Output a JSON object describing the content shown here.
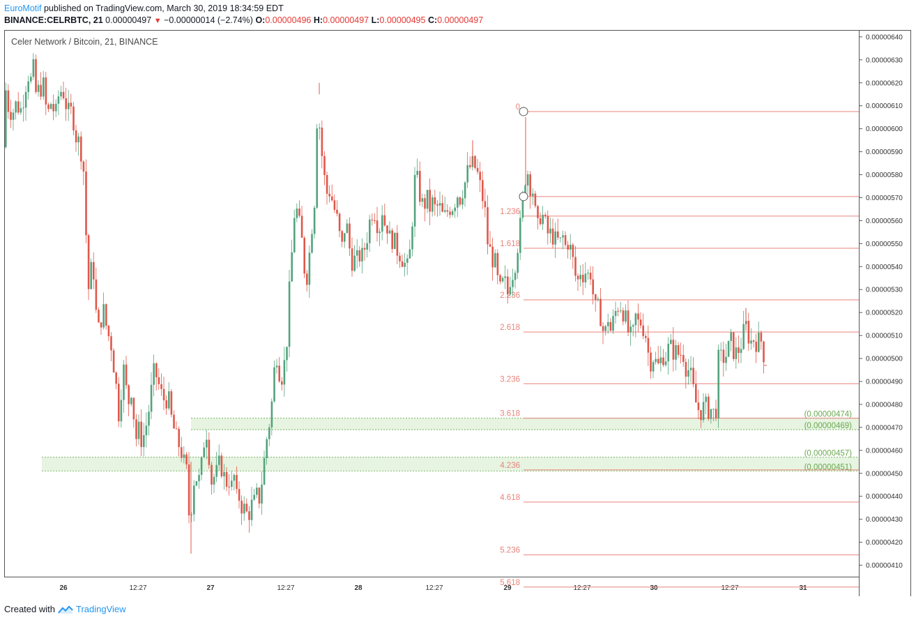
{
  "header": {
    "author": "EuroMotif",
    "published_text": "published on TradingView.com, March 30, 2019 18:34:59 EDT",
    "symbol": "BINANCE:CELRBTC, 21",
    "last_price": "0.00000497",
    "change_arrow": "▼",
    "change": "−0.00000014 (−2.74%)",
    "open_label": "O:",
    "open": "0.00000496",
    "high_label": "H:",
    "high": "0.00000497",
    "low_label": "L:",
    "low": "0.00000495",
    "close_label": "C:",
    "close": "0.00000497"
  },
  "footer": {
    "created_with": "Created with",
    "brand": "TradingView"
  },
  "colors": {
    "up": "#53a37e",
    "down": "#e0574a",
    "fib_line": "#e8837b",
    "fib_text": "#e8837b",
    "zone_fill": "#e6f4e1",
    "zone_text": "#6aa84f",
    "axis": "#555555",
    "price_line": "#e0574a"
  },
  "chart_data": {
    "type": "candlestick",
    "title": "Celer Network / Bitcoin, 21, BINANCE",
    "ylim": [
      4.05e-06,
      6.43e-06
    ],
    "y_ticks": [
      "0.00000640",
      "0.00000630",
      "0.00000620",
      "0.00000610",
      "0.00000600",
      "0.00000590",
      "0.00000580",
      "0.00000570",
      "0.00000560",
      "0.00000550",
      "0.00000540",
      "0.00000530",
      "0.00000520",
      "0.00000510",
      "0.00000500",
      "0.00000490",
      "0.00000480",
      "0.00000470",
      "0.00000460",
      "0.00000450",
      "0.00000440",
      "0.00000430",
      "0.00000420",
      "0.00000410"
    ],
    "x_ticks": [
      "26",
      "12:27",
      "27",
      "12:27",
      "28",
      "12:27",
      "29",
      "12:27",
      "30",
      "12:27",
      "31"
    ],
    "fib_levels": [
      {
        "label": "0",
        "price": 6.075e-06
      },
      {
        "label": "",
        "price": 5.705e-06
      },
      {
        "label": "1.236",
        "price": 5.62e-06
      },
      {
        "label": "1.618",
        "price": 5.48e-06
      },
      {
        "label": "2.236",
        "price": 5.255e-06
      },
      {
        "label": "2.618",
        "price": 5.115e-06
      },
      {
        "label": "3.236",
        "price": 4.89e-06
      },
      {
        "label": "3.618",
        "price": 4.74e-06
      },
      {
        "label": "4.236",
        "price": 4.515e-06
      },
      {
        "label": "4.618",
        "price": 4.375e-06
      },
      {
        "label": "5.236",
        "price": 4.145e-06
      },
      {
        "label": "5.618",
        "price": 4.005e-06
      }
    ],
    "zones": [
      {
        "top": 4.74e-06,
        "bottom": 4.69e-06,
        "top_label": "(0.00000474)",
        "bottom_label": "(0.00000469)"
      },
      {
        "top": 4.57e-06,
        "bottom": 4.51e-06,
        "top_label": "(0.00000457)",
        "bottom_label": "(0.00000451)"
      }
    ],
    "path": [
      [
        0,
        5.92e-06
      ],
      [
        4,
        6.18e-06
      ],
      [
        8,
        6.1e-06
      ],
      [
        14,
        6.07e-06
      ],
      [
        20,
        6.11e-06
      ],
      [
        26,
        6.08e-06
      ],
      [
        32,
        6.17e-06
      ],
      [
        36,
        6.25e-06
      ],
      [
        40,
        6.2e-06
      ],
      [
        44,
        6.26e-06
      ],
      [
        48,
        6.15e-06
      ],
      [
        53,
        6.17e-06
      ],
      [
        58,
        6.2e-06
      ],
      [
        64,
        6.05e-06
      ],
      [
        70,
        6.12e-06
      ],
      [
        76,
        6.05e-06
      ],
      [
        80,
        6.14e-06
      ],
      [
        86,
        6.18e-06
      ],
      [
        90,
        6.12e-06
      ],
      [
        96,
        6.05e-06
      ],
      [
        100,
        6.09e-06
      ],
      [
        104,
        5.98e-06
      ],
      [
        108,
        5.95e-06
      ],
      [
        112,
        5.92e-06
      ],
      [
        116,
        5.83e-06
      ],
      [
        118,
        5.73e-06
      ],
      [
        120,
        5.52e-06
      ],
      [
        122,
        5.27e-06
      ],
      [
        126,
        5.37e-06
      ],
      [
        130,
        5.41e-06
      ],
      [
        134,
        5.2e-06
      ],
      [
        138,
        5.12e-06
      ],
      [
        144,
        5.22e-06
      ],
      [
        150,
        5.12e-06
      ],
      [
        156,
        5.06e-06
      ],
      [
        160,
        4.96e-06
      ],
      [
        164,
        4.85e-06
      ],
      [
        168,
        4.72e-06
      ],
      [
        172,
        4.99e-06
      ],
      [
        176,
        4.9e-06
      ],
      [
        180,
        4.79e-06
      ],
      [
        184,
        4.89e-06
      ],
      [
        188,
        4.76e-06
      ],
      [
        192,
        4.65e-06
      ],
      [
        196,
        4.69e-06
      ],
      [
        200,
        4.64e-06
      ],
      [
        205,
        4.69e-06
      ],
      [
        210,
        4.78e-06
      ],
      [
        214,
        4.87e-06
      ],
      [
        218,
        4.95e-06
      ],
      [
        222,
        4.91e-06
      ],
      [
        226,
        4.86e-06
      ],
      [
        230,
        4.82e-06
      ],
      [
        234,
        4.83e-06
      ],
      [
        238,
        4.82e-06
      ],
      [
        242,
        4.74e-06
      ],
      [
        246,
        4.69e-06
      ],
      [
        250,
        4.64e-06
      ],
      [
        254,
        4.62e-06
      ],
      [
        258,
        4.58e-06
      ],
      [
        262,
        4.51e-06
      ],
      [
        266,
        4.5e-06
      ],
      [
        268,
        4.25e-06
      ],
      [
        272,
        4.4e-06
      ],
      [
        276,
        4.51e-06
      ],
      [
        280,
        4.46e-06
      ],
      [
        284,
        4.48e-06
      ],
      [
        288,
        4.62e-06
      ],
      [
        292,
        4.7e-06
      ],
      [
        296,
        4.59e-06
      ],
      [
        300,
        4.46e-06
      ],
      [
        304,
        4.49e-06
      ],
      [
        308,
        4.5e-06
      ],
      [
        312,
        4.55e-06
      ],
      [
        316,
        4.51e-06
      ],
      [
        320,
        4.45e-06
      ],
      [
        324,
        4.49e-06
      ],
      [
        328,
        4.43e-06
      ],
      [
        332,
        4.49e-06
      ],
      [
        336,
        4.38e-06
      ],
      [
        340,
        4.4e-06
      ],
      [
        344,
        4.35e-06
      ],
      [
        348,
        4.34e-06
      ],
      [
        352,
        4.31e-06
      ],
      [
        356,
        4.36e-06
      ],
      [
        360,
        4.36e-06
      ],
      [
        364,
        4.4e-06
      ],
      [
        368,
        4.39e-06
      ],
      [
        372,
        4.47e-06
      ],
      [
        376,
        4.57e-06
      ],
      [
        380,
        4.68e-06
      ],
      [
        384,
        4.74e-06
      ],
      [
        388,
        4.86e-06
      ],
      [
        392,
        5.05e-06
      ],
      [
        396,
        4.96e-06
      ],
      [
        400,
        4.92e-06
      ],
      [
        404,
        4.97e-06
      ],
      [
        408,
        5.09e-06
      ],
      [
        412,
        5.32e-06
      ],
      [
        416,
        5.5e-06
      ],
      [
        420,
        5.7e-06
      ],
      [
        424,
        5.59e-06
      ],
      [
        428,
        5.56e-06
      ],
      [
        432,
        5.41e-06
      ],
      [
        436,
        5.35e-06
      ],
      [
        440,
        5.45e-06
      ],
      [
        444,
        5.59e-06
      ],
      [
        448,
        5.71e-06
      ],
      [
        452,
        6.15e-06
      ],
      [
        456,
        5.94e-06
      ],
      [
        460,
        5.84e-06
      ],
      [
        464,
        5.71e-06
      ],
      [
        468,
        5.74e-06
      ],
      [
        472,
        5.7e-06
      ],
      [
        476,
        5.65e-06
      ],
      [
        480,
        5.6e-06
      ],
      [
        484,
        5.52e-06
      ],
      [
        488,
        5.47e-06
      ],
      [
        492,
        5.62e-06
      ],
      [
        496,
        5.52e-06
      ],
      [
        500,
        5.43e-06
      ],
      [
        504,
        5.43e-06
      ],
      [
        508,
        5.42e-06
      ],
      [
        512,
        5.45e-06
      ],
      [
        516,
        5.44e-06
      ],
      [
        520,
        5.49e-06
      ],
      [
        524,
        5.55e-06
      ],
      [
        528,
        5.62e-06
      ],
      [
        532,
        5.66e-06
      ],
      [
        536,
        5.62e-06
      ],
      [
        540,
        5.55e-06
      ],
      [
        544,
        5.66e-06
      ],
      [
        548,
        5.59e-06
      ],
      [
        552,
        5.58e-06
      ],
      [
        556,
        5.51e-06
      ],
      [
        560,
        5.53e-06
      ],
      [
        564,
        5.48e-06
      ],
      [
        568,
        5.47e-06
      ],
      [
        572,
        5.45e-06
      ],
      [
        576,
        5.42e-06
      ],
      [
        580,
        5.38e-06
      ],
      [
        584,
        5.45e-06
      ],
      [
        588,
        5.62e-06
      ],
      [
        592,
        5.8e-06
      ],
      [
        596,
        5.76e-06
      ],
      [
        600,
        5.69e-06
      ],
      [
        604,
        5.65e-06
      ],
      [
        608,
        5.71e-06
      ],
      [
        612,
        5.65e-06
      ],
      [
        616,
        5.68e-06
      ],
      [
        620,
        5.65e-06
      ],
      [
        624,
        5.66e-06
      ],
      [
        628,
        5.65e-06
      ],
      [
        632,
        5.61e-06
      ],
      [
        636,
        5.62e-06
      ],
      [
        640,
        5.66e-06
      ],
      [
        644,
        5.66e-06
      ],
      [
        648,
        5.68e-06
      ],
      [
        652,
        5.72e-06
      ],
      [
        656,
        5.7e-06
      ],
      [
        660,
        5.74e-06
      ],
      [
        664,
        5.77e-06
      ],
      [
        668,
        5.82e-06
      ],
      [
        672,
        5.84e-06
      ],
      [
        676,
        5.84e-06
      ],
      [
        680,
        5.82e-06
      ],
      [
        684,
        5.76e-06
      ],
      [
        688,
        5.71e-06
      ],
      [
        692,
        5.64e-06
      ],
      [
        696,
        5.5e-06
      ],
      [
        700,
        5.46e-06
      ],
      [
        704,
        5.43e-06
      ],
      [
        708,
        5.4e-06
      ],
      [
        712,
        5.28e-06
      ],
      [
        716,
        5.31e-06
      ],
      [
        720,
        5.34e-06
      ],
      [
        724,
        5.27e-06
      ],
      [
        728,
        5.35e-06
      ],
      [
        732,
        5.38e-06
      ],
      [
        736,
        5.43e-06
      ],
      [
        740,
        5.52e-06
      ],
      [
        744,
        5.6e-06
      ],
      [
        748,
        5.75e-06
      ],
      [
        752,
        5.84e-06
      ],
      [
        756,
        5.76e-06
      ],
      [
        760,
        5.75e-06
      ],
      [
        764,
        5.63e-06
      ],
      [
        768,
        5.56e-06
      ],
      [
        772,
        5.64e-06
      ],
      [
        776,
        5.61e-06
      ],
      [
        780,
        5.56e-06
      ],
      [
        784,
        5.53e-06
      ],
      [
        788,
        5.55e-06
      ],
      [
        792,
        5.51e-06
      ],
      [
        796,
        5.51e-06
      ],
      [
        800,
        5.5e-06
      ],
      [
        804,
        5.53e-06
      ],
      [
        808,
        5.48e-06
      ],
      [
        812,
        5.52e-06
      ],
      [
        816,
        5.45e-06
      ],
      [
        820,
        5.4e-06
      ],
      [
        824,
        5.31e-06
      ],
      [
        828,
        5.39e-06
      ],
      [
        832,
        5.37e-06
      ],
      [
        836,
        5.38e-06
      ],
      [
        840,
        5.36e-06
      ],
      [
        844,
        5.38e-06
      ],
      [
        848,
        5.25e-06
      ],
      [
        852,
        5.19e-06
      ],
      [
        856,
        5.23e-06
      ],
      [
        860,
        5.14e-06
      ],
      [
        864,
        5.09e-06
      ],
      [
        868,
        5.19e-06
      ],
      [
        872,
        5.12e-06
      ],
      [
        876,
        5.16e-06
      ],
      [
        880,
        5.21e-06
      ],
      [
        884,
        5.24e-06
      ],
      [
        888,
        5.23e-06
      ],
      [
        892,
        5.19e-06
      ],
      [
        896,
        5.13e-06
      ],
      [
        900,
        5.09e-06
      ],
      [
        904,
        5.09e-06
      ],
      [
        908,
        5.18e-06
      ],
      [
        912,
        5.15e-06
      ],
      [
        916,
        5.16e-06
      ],
      [
        920,
        5.13e-06
      ],
      [
        924,
        5.09e-06
      ],
      [
        928,
        4.97e-06
      ],
      [
        932,
        5.02e-06
      ],
      [
        936,
        4.99e-06
      ],
      [
        940,
        4.96e-06
      ],
      [
        944,
        4.99e-06
      ],
      [
        948,
        5.02e-06
      ],
      [
        952,
        5.01e-06
      ],
      [
        956,
        5.05e-06
      ],
      [
        960,
        5.04e-06
      ],
      [
        964,
        5.03e-06
      ],
      [
        968,
        5.02e-06
      ],
      [
        972,
        5.02e-06
      ],
      [
        976,
        5.03e-06
      ],
      [
        980,
        4.97e-06
      ],
      [
        984,
        4.95e-06
      ],
      [
        988,
        4.91e-06
      ],
      [
        992,
        4.84e-06
      ],
      [
        996,
        4.79e-06
      ],
      [
        1000,
        4.77e-06
      ],
      [
        1004,
        4.78e-06
      ],
      [
        1008,
        4.79e-06
      ],
      [
        1012,
        4.78e-06
      ],
      [
        1016,
        4.78e-06
      ],
      [
        1020,
        4.76e-06
      ],
      [
        1024,
        4.79e-06
      ],
      [
        1027,
        4.99e-06
      ],
      [
        1032,
        5e-06
      ],
      [
        1036,
        5.01e-06
      ],
      [
        1040,
        5.02e-06
      ],
      [
        1044,
        5.08e-06
      ],
      [
        1048,
        5.04e-06
      ],
      [
        1052,
        5.02e-06
      ],
      [
        1056,
        5.04e-06
      ],
      [
        1060,
        5.07e-06
      ],
      [
        1064,
        5.12e-06
      ],
      [
        1068,
        5.15e-06
      ],
      [
        1072,
        5.06e-06
      ],
      [
        1076,
        5.09e-06
      ],
      [
        1080,
        5.08e-06
      ],
      [
        1084,
        5.07e-06
      ],
      [
        1088,
        5.08e-06
      ],
      [
        1092,
        5.02e-06
      ],
      [
        1094,
        4.97e-06
      ],
      [
        1096,
        4.97e-06
      ],
      [
        1099,
        4.96e-06
      ]
    ],
    "shocks": [
      {
        "x": 452,
        "high": 6.2e-06
      },
      {
        "x": 268,
        "high": 4.55e-06,
        "low": 4.15e-06
      },
      {
        "x": 748,
        "high": 6.05e-06
      },
      {
        "x": 1064,
        "high": 5.22e-06
      },
      {
        "x": 672,
        "high": 5.95e-06
      }
    ],
    "anchors": [
      {
        "price": 6.075e-06
      },
      {
        "price": 5.705e-06
      }
    ],
    "last_price": 4.97e-06
  }
}
